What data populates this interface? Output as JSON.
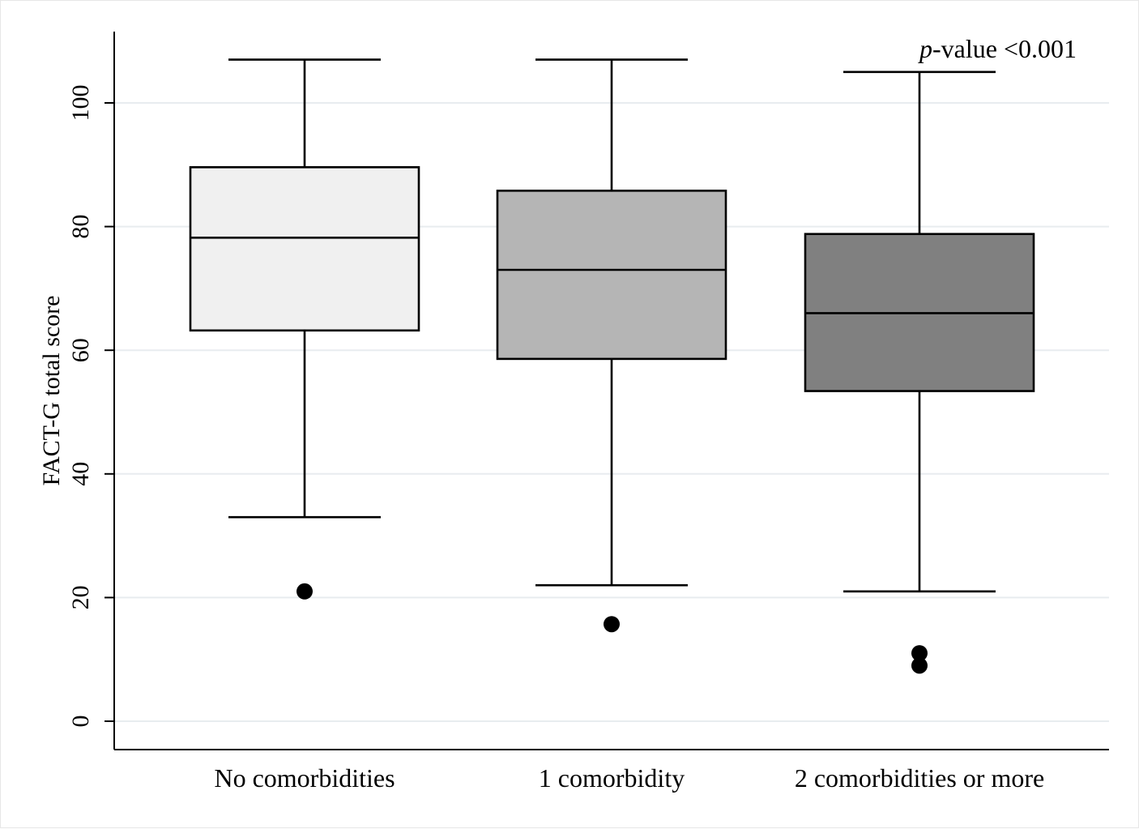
{
  "chart_data": {
    "type": "box",
    "title": "",
    "ylabel": "FACT-G total score",
    "xlabel": "",
    "ylim": [
      -5,
      112
    ],
    "yticks": [
      0,
      20,
      40,
      60,
      80,
      100
    ],
    "grid": true,
    "annotation": {
      "italic_part": "p",
      "rest": "-value <0.001"
    },
    "categories": [
      "No comorbidities",
      "1 comorbidity",
      "2 comorbidities or more"
    ],
    "boxes": [
      {
        "category": "No comorbidities",
        "whisker_low": 33,
        "q1": 63.2,
        "median": 78.2,
        "q3": 89.6,
        "whisker_high": 107,
        "outliers": [
          21
        ],
        "fill": "#f0f0f0"
      },
      {
        "category": "1 comorbidity",
        "whisker_low": 22,
        "q1": 58.6,
        "median": 73,
        "q3": 85.8,
        "whisker_high": 107,
        "outliers": [
          15.7
        ],
        "fill": "#b5b5b5"
      },
      {
        "category": "2 comorbidities or more",
        "whisker_low": 21,
        "q1": 53.4,
        "median": 66,
        "q3": 78.8,
        "whisker_high": 105,
        "outliers": [
          11,
          9
        ],
        "fill": "#808080"
      }
    ],
    "colors": {
      "axis": "#000000",
      "grid": "#e8ecef",
      "box_stroke": "#000000"
    }
  }
}
